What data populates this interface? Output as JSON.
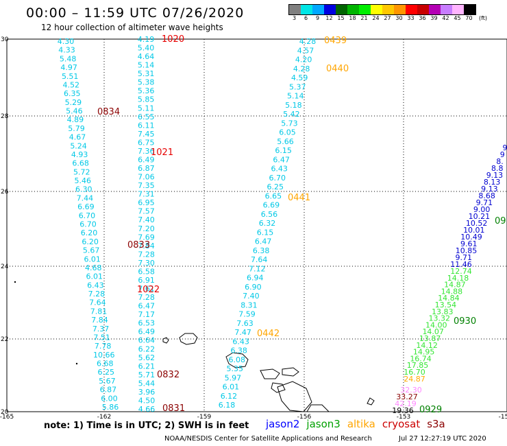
{
  "header": {
    "title": "00:00 – 11:59 UTC 07/26/2020",
    "subtitle": "12 hour collection of altimeter wave heights"
  },
  "colorbar": {
    "unit_label": "(ft)",
    "tick_labels": [
      "3",
      "6",
      "9",
      "12",
      "15",
      "18",
      "21",
      "24",
      "27",
      "30",
      "33",
      "36",
      "39",
      "42",
      "45",
      "70"
    ],
    "colors": [
      "#808080",
      "#00e6e6",
      "#00a8ff",
      "#0000e0",
      "#006400",
      "#00b400",
      "#00ee00",
      "#ffff00",
      "#ffc800",
      "#ff9600",
      "#ff0000",
      "#c80000",
      "#b400b4",
      "#c87dff",
      "#ffb4ff",
      "#000000"
    ]
  },
  "axes": {
    "lat_labels": [
      "30",
      "28",
      "26",
      "24",
      "22",
      "20"
    ],
    "lon_labels": [
      "-165",
      "-162",
      "-159",
      "-156",
      "-153",
      "-15"
    ]
  },
  "passes": [
    {
      "color": "#00c8e6",
      "values": [
        "4.30",
        "4.33",
        "5.48",
        "4.97",
        "5.51",
        "4.52",
        "6.35",
        "5.29",
        "5.46",
        "4.89",
        "5.79",
        "4.67",
        "5.24",
        "4.93",
        "6.68",
        "5.72",
        "5.46",
        "6.30",
        "7.44",
        "6.69",
        "6.70",
        "6.70",
        "6.20",
        "6.20",
        "5.67",
        "6.01",
        "4.68",
        "6.01",
        "6.43",
        "7.28",
        "7.64",
        "7.81",
        "7.84",
        "7.37",
        "7.51",
        "7.78",
        "10.66",
        "6.68",
        "6.25",
        "5.67",
        "6.87",
        "6.00",
        "5.86"
      ]
    },
    {
      "color": "#00c8e6",
      "values": [
        "4.19",
        "5.40",
        "4.64",
        "5.14",
        "5.31",
        "5.38",
        "5.36",
        "5.85",
        "5.11",
        "6.55",
        "6.11",
        "7.45",
        "6.75",
        "7.36",
        "6.49",
        "6.87",
        "7.06",
        "7.35",
        "7.31",
        "6.95",
        "7.57",
        "7.40",
        "7.20",
        "7.69",
        "7.84",
        "7.28",
        "7.30",
        "6.58",
        "6.91",
        "7.61",
        "7.28",
        "6.47",
        "7.17",
        "6.53",
        "6.49",
        "6.64",
        "6.22",
        "5.62",
        "6.21",
        "5.71",
        "5.44",
        "3.96",
        "4.50",
        "4.66"
      ]
    },
    {
      "color": "#00c8e6",
      "values": [
        "4.28",
        "4.57",
        "4.20",
        "4.28",
        "4.59",
        "5.37",
        "5.14",
        "5.18",
        "5.42",
        "5.73",
        "6.05",
        "5.66",
        "6.15",
        "6.47",
        "6.43",
        "6.70",
        "6.25",
        "6.65",
        "6.69",
        "6.56",
        "6.32",
        "6.15",
        "6.47",
        "6.38",
        "7.64",
        "7.12",
        "6.94",
        "6.90",
        "7.40",
        "8.31",
        "7.59",
        "7.63",
        "7.47",
        "6.43",
        "6.38",
        "6.08",
        "5.35",
        "5.97",
        "6.01",
        "6.12",
        "6.18"
      ]
    },
    {
      "color": "#0000d0",
      "values": [
        "9",
        "9",
        "8.",
        "8.8",
        "9.13",
        "8.13",
        "9.13",
        "8.68",
        "9.71",
        "9.00",
        "10.21",
        "10.52",
        "10.01",
        "10.49",
        "9.61",
        "10.85",
        "9.71",
        "11.46"
      ]
    },
    {
      "color": "#33e633",
      "values": [
        "12.74",
        "14.18",
        "14.87",
        "14.88",
        "14.84",
        "13.54",
        "13.83",
        "13.32",
        "14.00",
        "14.07",
        "13.87",
        "14.12",
        "14.95",
        "16.74",
        "17.85",
        "16.70"
      ]
    },
    {
      "color": "#ffaa00",
      "values": [
        "24.87"
      ]
    },
    {
      "color": "#ff88ff",
      "values": [
        "32.30"
      ]
    },
    {
      "color": "#880000",
      "values": [
        "33.27"
      ]
    },
    {
      "color": "#ff88ff",
      "values": [
        "42.19"
      ]
    },
    {
      "color": "#000000",
      "values": [
        "19.36"
      ]
    }
  ],
  "time_labels": [
    {
      "text": "1020",
      "color": "#e60000"
    },
    {
      "text": "0834",
      "color": "#8b0000"
    },
    {
      "text": "1021",
      "color": "#e60000"
    },
    {
      "text": "0833",
      "color": "#8b0000"
    },
    {
      "text": "1022",
      "color": "#e60000"
    },
    {
      "text": "0832",
      "color": "#8b0000"
    },
    {
      "text": "0831",
      "color": "#8b0000"
    },
    {
      "text": "0439",
      "color": "#ffa500"
    },
    {
      "text": "0440",
      "color": "#ffa500"
    },
    {
      "text": "0441",
      "color": "#ffa500"
    },
    {
      "text": "0442",
      "color": "#ffa500"
    },
    {
      "text": "09",
      "color": "#008000"
    },
    {
      "text": "0930",
      "color": "#008000"
    },
    {
      "text": "0929",
      "color": "#008000"
    }
  ],
  "footer": {
    "note": "note: 1) Time is in UTC; 2) SWH is in feet",
    "satellites": [
      {
        "name": "jason2",
        "color": "#0000ff"
      },
      {
        "name": "jason3",
        "color": "#00a000"
      },
      {
        "name": "altika",
        "color": "#ffa500"
      },
      {
        "name": "cryosat",
        "color": "#cc0000"
      },
      {
        "name": "s3a",
        "color": "#8b0000"
      }
    ],
    "credit": "NOAA/NESDIS Center for Satellite Applications and Research",
    "timestamp": "Jul 27 12:27:19 UTC 2020"
  }
}
